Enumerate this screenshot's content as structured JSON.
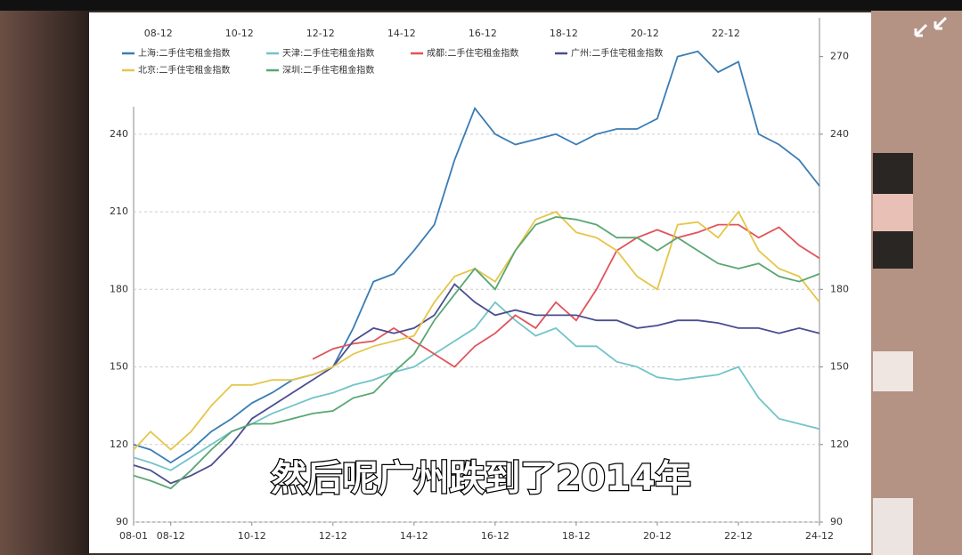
{
  "chart_data": {
    "type": "line",
    "x": [
      "08-01",
      "08-06",
      "08-12",
      "09-06",
      "09-12",
      "10-06",
      "10-12",
      "11-06",
      "11-12",
      "12-06",
      "12-12",
      "13-06",
      "13-12",
      "14-06",
      "14-12",
      "15-06",
      "15-12",
      "16-06",
      "16-12",
      "17-06",
      "17-12",
      "18-06",
      "18-12",
      "19-06",
      "19-12",
      "20-06",
      "20-12",
      "21-06",
      "21-12",
      "22-06",
      "22-12",
      "23-06",
      "23-12",
      "24-06",
      "24-12"
    ],
    "xticks": [
      "08-01",
      "08-12",
      "10-12",
      "12-12",
      "14-12",
      "16-12",
      "18-12",
      "20-12",
      "22-12",
      "24-12"
    ],
    "ylim": [
      90,
      285
    ],
    "yticks": [
      90,
      120,
      150,
      180,
      210,
      240
    ],
    "y2lim": [
      90,
      285
    ],
    "y2ticks": [
      90,
      120,
      150,
      180,
      240,
      270
    ],
    "grid": true,
    "series": [
      {
        "name": "上海:二手住宅租金指数",
        "color": "#3a7db5",
        "values": [
          120,
          118,
          113,
          118,
          125,
          130,
          136,
          140,
          145,
          147,
          150,
          165,
          183,
          186,
          195,
          205,
          230,
          250,
          240,
          236,
          238,
          240,
          236,
          240,
          242,
          242,
          246,
          270,
          272,
          264,
          268,
          240,
          236,
          230,
          220
        ]
      },
      {
        "name": "天津:二手住宅租金指数",
        "color": "#72c4c9",
        "values": [
          115,
          113,
          110,
          115,
          120,
          125,
          128,
          132,
          135,
          138,
          140,
          143,
          145,
          148,
          150,
          155,
          160,
          165,
          175,
          168,
          162,
          165,
          158,
          158,
          152,
          150,
          146,
          145,
          146,
          147,
          150,
          138,
          130,
          128,
          126
        ]
      },
      {
        "name": "成都:二手住宅租金指数",
        "color": "#e0545a",
        "values": [
          null,
          null,
          null,
          null,
          null,
          null,
          null,
          null,
          null,
          153,
          157,
          159,
          160,
          165,
          160,
          155,
          150,
          158,
          163,
          170,
          165,
          175,
          168,
          180,
          195,
          200,
          203,
          200,
          202,
          205,
          205,
          200,
          204,
          197,
          192
        ]
      },
      {
        "name": "广州:二手住宅租金指数",
        "color": "#4a4e8f",
        "values": [
          112,
          110,
          105,
          108,
          112,
          120,
          130,
          135,
          140,
          145,
          150,
          160,
          165,
          163,
          165,
          170,
          182,
          175,
          170,
          172,
          170,
          170,
          170,
          168,
          168,
          165,
          166,
          168,
          168,
          167,
          165,
          165,
          163,
          165,
          163
        ]
      },
      {
        "name": "北京:二手住宅租金指数",
        "color": "#e6c64a",
        "values": [
          118,
          125,
          118,
          125,
          135,
          143,
          143,
          145,
          145,
          147,
          150,
          155,
          158,
          160,
          162,
          175,
          185,
          188,
          183,
          195,
          207,
          210,
          202,
          200,
          195,
          185,
          180,
          205,
          206,
          200,
          210,
          195,
          188,
          185,
          175
        ]
      },
      {
        "name": "深圳:二手住宅租金指数",
        "color": "#5aa672",
        "values": [
          108,
          106,
          103,
          110,
          118,
          125,
          128,
          128,
          130,
          132,
          133,
          138,
          140,
          148,
          155,
          168,
          178,
          188,
          180,
          195,
          205,
          208,
          207,
          205,
          200,
          200,
          195,
          200,
          195,
          190,
          188,
          190,
          185,
          183,
          186
        ]
      }
    ]
  },
  "caption": "然后呢广州跌到了2014年"
}
